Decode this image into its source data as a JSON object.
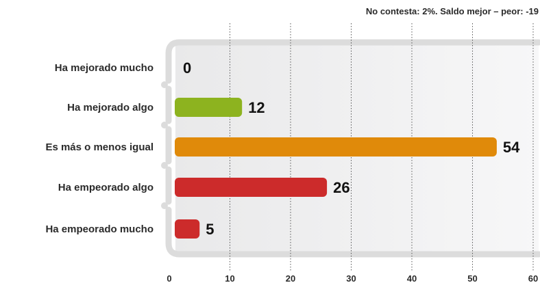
{
  "chart_data": {
    "type": "bar",
    "orientation": "horizontal",
    "note": "No contesta: 2%. Saldo mejor – peor: -19",
    "categories": [
      "Ha mejorado mucho",
      "Ha mejorado algo",
      "Es más o menos igual",
      "Ha empeorado algo",
      "Ha empeorado mucho"
    ],
    "values": [
      0,
      12,
      54,
      26,
      5
    ],
    "value_labels": [
      "0",
      "12",
      "54",
      "26",
      "5"
    ],
    "colors": [
      "#8db31f",
      "#8db31f",
      "#e08a0a",
      "#cc2b2b",
      "#cc2b2b"
    ],
    "xlim": [
      0,
      60
    ],
    "ticks": [
      0,
      10,
      20,
      30,
      40,
      50,
      60
    ],
    "tick_labels": [
      "0",
      "10",
      "20",
      "30",
      "40",
      "50",
      "60"
    ],
    "grid": true,
    "xlabel": "",
    "ylabel": ""
  }
}
